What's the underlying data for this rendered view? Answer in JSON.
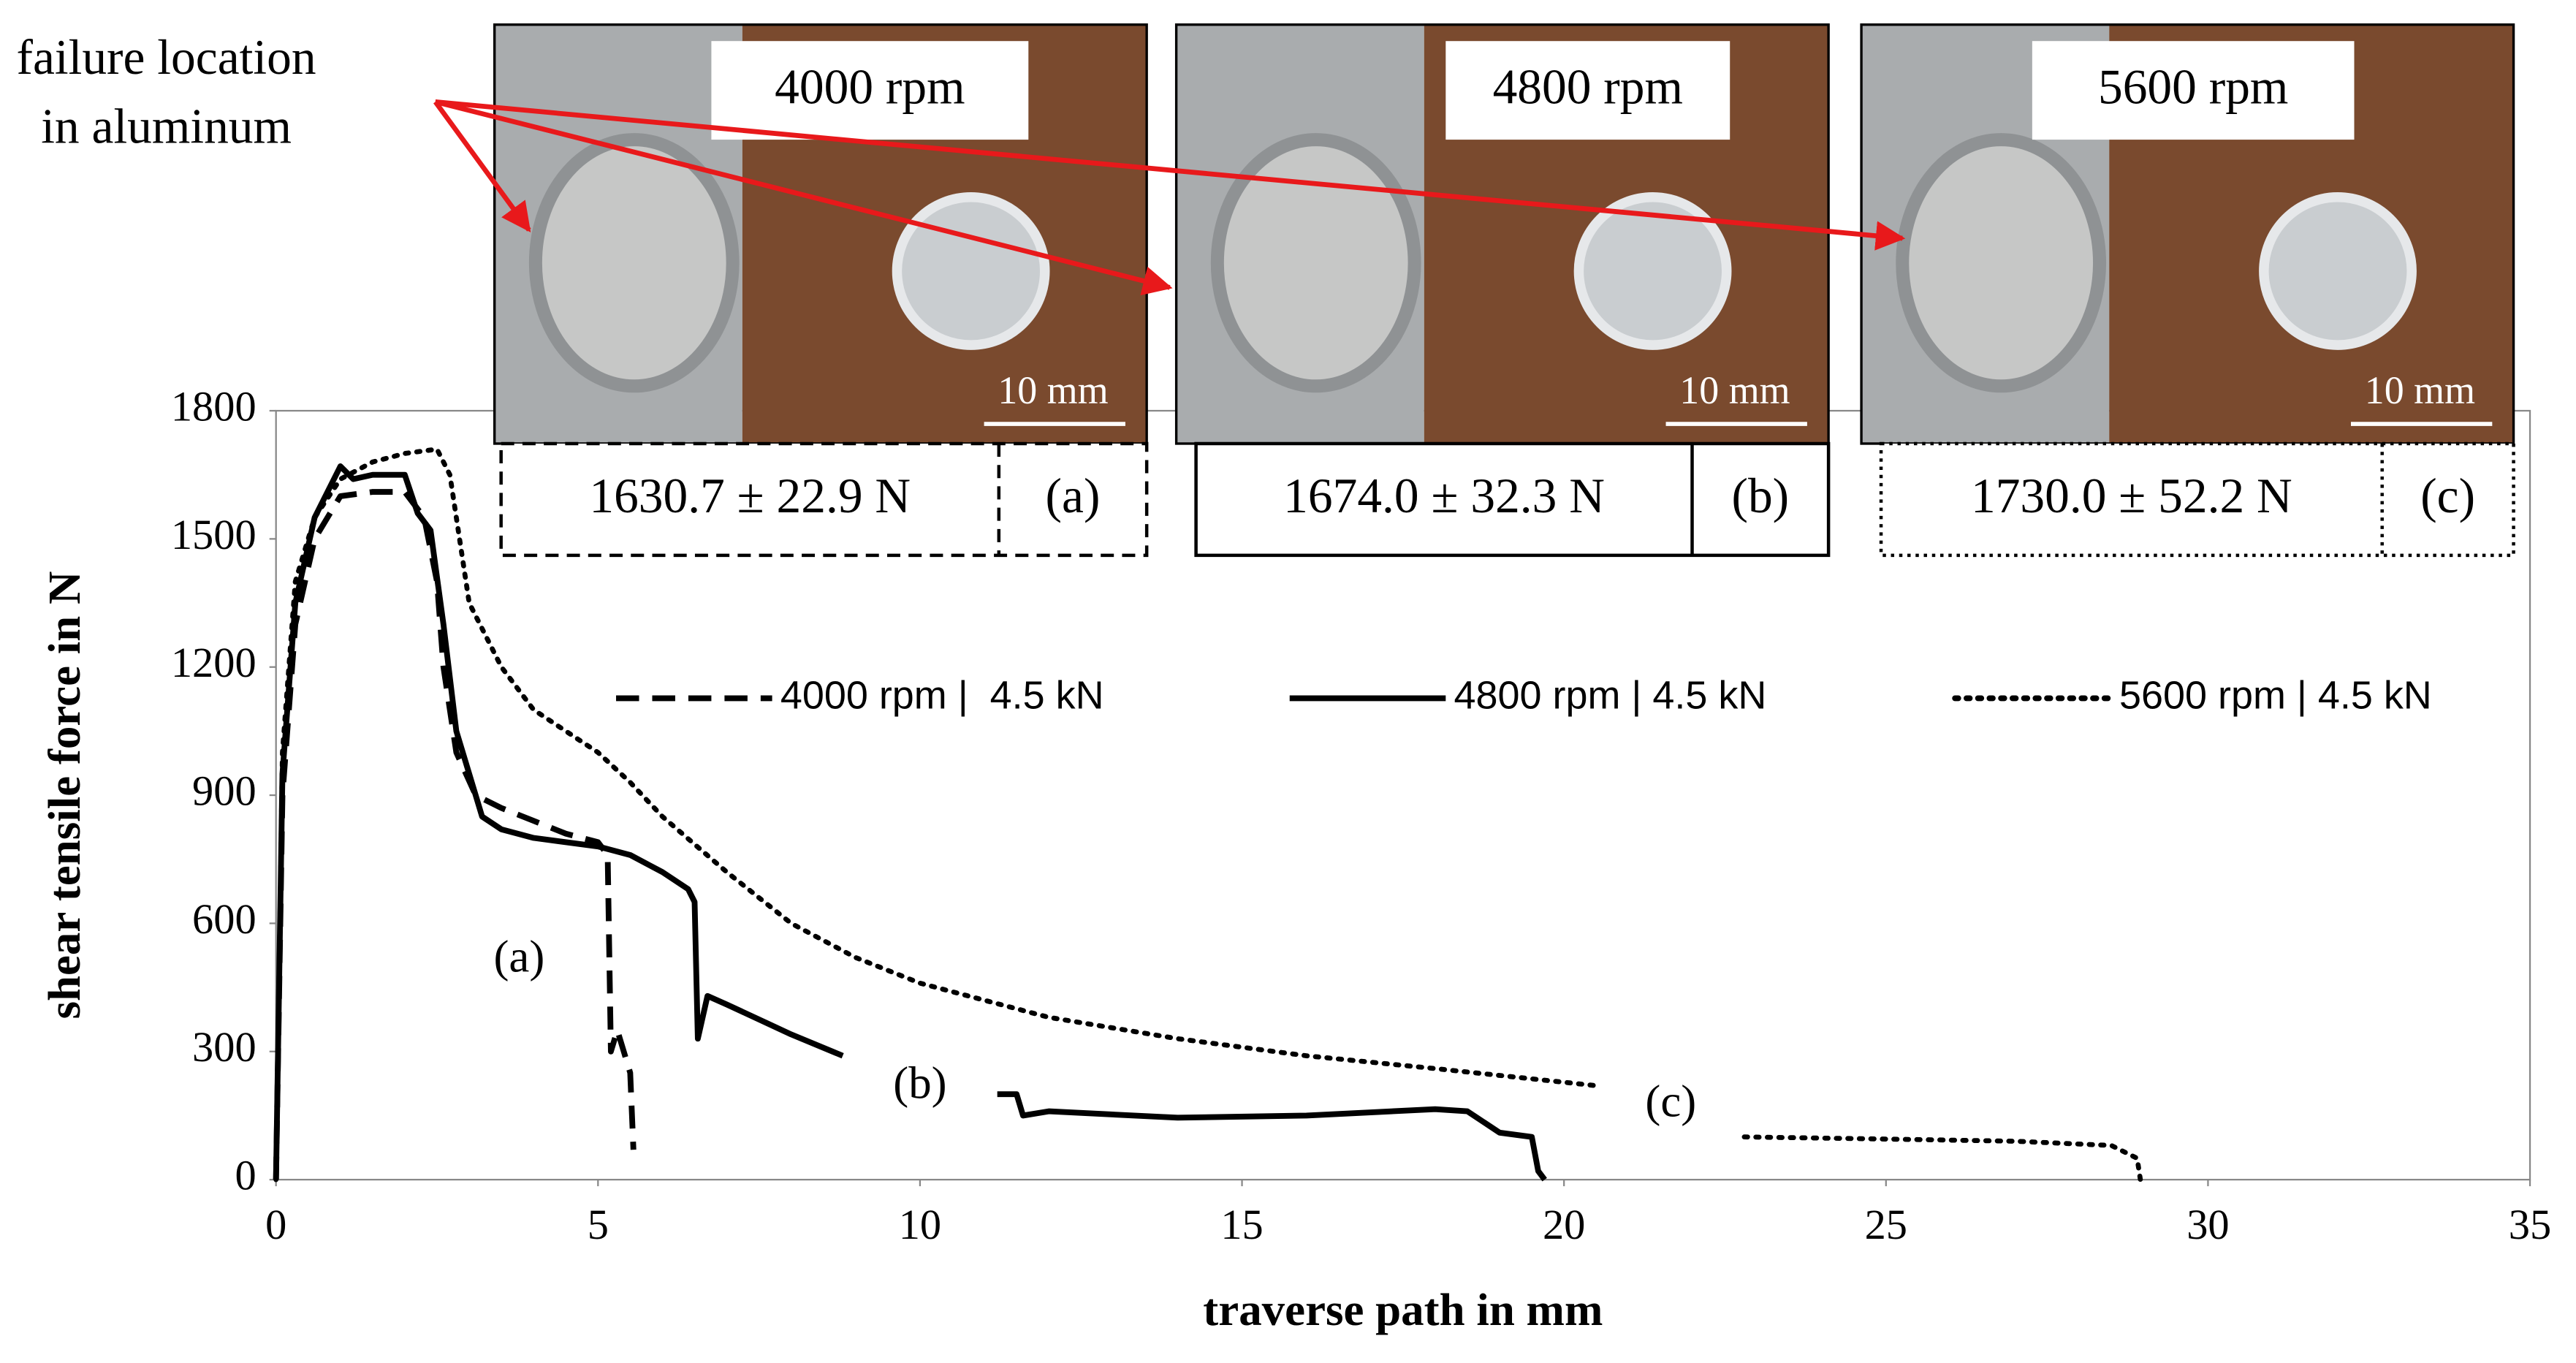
{
  "chart_data": {
    "type": "line",
    "xlabel": "traverse path in mm",
    "ylabel": "shear tensile force in N",
    "xlim": [
      0,
      35
    ],
    "xticks": [
      0,
      5,
      10,
      15,
      20,
      25,
      30,
      35
    ],
    "ylim": [
      0,
      1800
    ],
    "yticks": [
      0,
      300,
      600,
      900,
      1200,
      1500,
      1800
    ],
    "series": [
      {
        "name": "4000 rpm |  4.5 kN",
        "color": "#000000",
        "dash": "dashed",
        "x": [
          0,
          0.1,
          0.3,
          0.6,
          1,
          1.5,
          2,
          2.3,
          2.5,
          2.6,
          2.8,
          3.1,
          3.5,
          4,
          4.5,
          5,
          5.15,
          5.2,
          5.3,
          5.4,
          5.5,
          5.55
        ],
        "values": [
          0,
          900,
          1300,
          1500,
          1600,
          1610,
          1610,
          1550,
          1400,
          1200,
          1000,
          900,
          870,
          840,
          810,
          790,
          760,
          300,
          350,
          300,
          250,
          70
        ]
      },
      {
        "name": "4800 rpm | 4.5 kN",
        "color": "#000000",
        "dash": "solid",
        "x": [
          0,
          0.1,
          0.3,
          0.6,
          1,
          1.2,
          1.5,
          2,
          2.2,
          2.4,
          2.6,
          2.8,
          3.2,
          3.5,
          4,
          5,
          5.5,
          6,
          6.4,
          6.5,
          6.55,
          6.7,
          7,
          8,
          8.8,
          10,
          11.2,
          11.5,
          11.6,
          12,
          14,
          16,
          18,
          18.5,
          19,
          19.5,
          19.6,
          19.7
        ],
        "values": [
          0,
          950,
          1350,
          1550,
          1670,
          1640,
          1650,
          1650,
          1560,
          1520,
          1300,
          1050,
          850,
          820,
          800,
          780,
          760,
          720,
          680,
          650,
          330,
          430,
          410,
          340,
          290,
          null,
          200,
          200,
          150,
          160,
          145,
          150,
          165,
          160,
          110,
          100,
          20,
          0
        ]
      },
      {
        "name": "5600 rpm | 4.5 kN",
        "color": "#000000",
        "dash": "dotted",
        "x": [
          0,
          0.1,
          0.3,
          0.6,
          1,
          1.5,
          2,
          2.5,
          2.7,
          3,
          3.5,
          4,
          5,
          5.5,
          6,
          7,
          8,
          9,
          10,
          12,
          14,
          16,
          18,
          20.5,
          21.5,
          22.8,
          25,
          27,
          28.5,
          28.9,
          28.95
        ],
        "values": [
          0,
          1000,
          1400,
          1550,
          1640,
          1680,
          1700,
          1710,
          1650,
          1350,
          1200,
          1100,
          1000,
          930,
          850,
          720,
          600,
          520,
          460,
          380,
          330,
          290,
          260,
          220,
          null,
          100,
          95,
          90,
          80,
          50,
          0
        ]
      }
    ],
    "annotations": [
      "(a)",
      "(b)",
      "(c)"
    ],
    "callout": [
      "failure location",
      "in aluminum"
    ],
    "panels": [
      {
        "speed": "4000 rpm",
        "scale": "10 mm",
        "force": "1630.7 ± 22.9 N",
        "tag": "(a)"
      },
      {
        "speed": "4800 rpm",
        "scale": "10 mm",
        "force": "1674.0 ± 32.3 N",
        "tag": "(b)"
      },
      {
        "speed": "5600 rpm",
        "scale": "10 mm",
        "force": "1730.0 ± 52.2 N",
        "tag": "(c)"
      }
    ]
  }
}
